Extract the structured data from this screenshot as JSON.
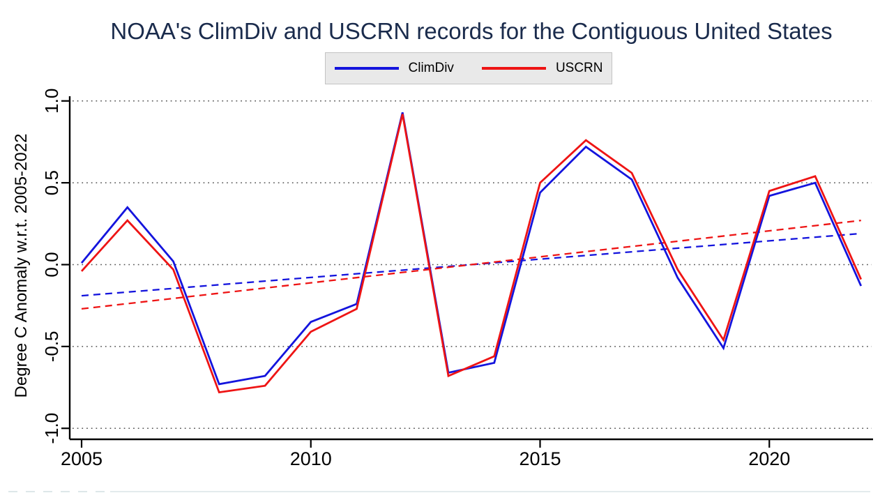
{
  "page": {
    "title": "NOAA's ClimDiv and USCRN records for the Contiguous United States"
  },
  "legend": {
    "items": [
      {
        "label": "ClimDiv",
        "color": "#1414dd"
      },
      {
        "label": "USCRN",
        "color": "#ee1414"
      }
    ]
  },
  "chart_data": {
    "type": "line",
    "title": "NOAA's ClimDiv and USCRN records for the Contiguous United States",
    "xlabel": "",
    "ylabel": "Degree C Anomaly w.r.t. 2005-2022",
    "x": [
      2005,
      2006,
      2007,
      2008,
      2009,
      2010,
      2011,
      2012,
      2013,
      2014,
      2015,
      2016,
      2017,
      2018,
      2019,
      2020,
      2021,
      2022
    ],
    "series": [
      {
        "name": "ClimDiv",
        "color": "#1414dd",
        "style": "solid",
        "values": [
          0.01,
          0.35,
          0.02,
          -0.73,
          -0.68,
          -0.35,
          -0.24,
          0.93,
          -0.66,
          -0.6,
          0.44,
          0.72,
          0.52,
          -0.08,
          -0.51,
          0.42,
          0.5,
          -0.13
        ]
      },
      {
        "name": "USCRN",
        "color": "#ee1414",
        "style": "solid",
        "values": [
          -0.04,
          0.27,
          -0.03,
          -0.78,
          -0.74,
          -0.41,
          -0.27,
          0.92,
          -0.68,
          -0.56,
          0.5,
          0.76,
          0.56,
          -0.03,
          -0.46,
          0.45,
          0.54,
          -0.09
        ]
      }
    ],
    "trend_lines": [
      {
        "name": "ClimDiv linear trend",
        "color": "#1414dd",
        "style": "dashed",
        "x_start": 2005,
        "y_start": -0.19,
        "x_end": 2022,
        "y_end": 0.19
      },
      {
        "name": "USCRN linear trend",
        "color": "#ee1414",
        "style": "dashed",
        "x_start": 2005,
        "y_start": -0.27,
        "x_end": 2022,
        "y_end": 0.27
      }
    ],
    "xticks": {
      "values": [
        2005,
        2010,
        2015,
        2020
      ],
      "labels": [
        "2005",
        "2010",
        "2015",
        "2020"
      ]
    },
    "yticks": {
      "values": [
        1.0,
        0.5,
        0.0,
        -0.5,
        -1.0
      ],
      "labels": [
        "1.0",
        "0.5",
        "0.0",
        "-0.5",
        "-1.0"
      ]
    },
    "xlim": [
      2005,
      2022.3
    ],
    "ylim": [
      -1.05,
      1.05
    ],
    "grid": "horizontal-dotted",
    "legend_position": "top-center",
    "grid_color": "#4d4d4d",
    "axis_color": "#000000",
    "title_color": "#1a2b4c"
  }
}
